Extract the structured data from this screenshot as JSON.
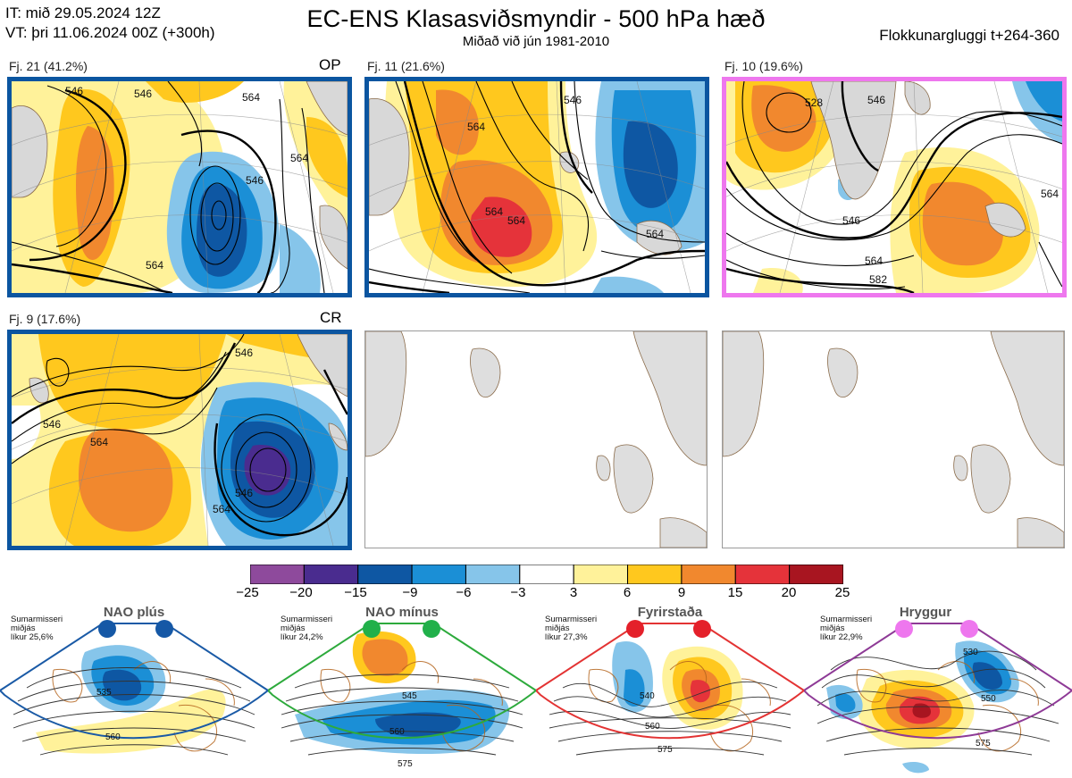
{
  "header": {
    "it_line": "IT: mið 29.05.2024 12Z",
    "vt_line": "VT: þri 11.06.2024 00Z  (+300h)",
    "title": "EC-ENS Klasasviðsmyndir - 500 hPa hæð",
    "subtitle": "Miðað við jún 1981-2010",
    "window": "Flokkunargluggi t+264-360"
  },
  "panels": [
    {
      "label": "Fj. 21 (41.2%)",
      "tag": "OP",
      "frame": "blue",
      "contours": [
        "546",
        "564",
        "564",
        "564",
        "546",
        "546"
      ]
    },
    {
      "label": "Fj. 11 (21.6%)",
      "tag": "",
      "frame": "blue",
      "contours": [
        "564",
        "546",
        "564",
        "564",
        "564"
      ]
    },
    {
      "label": "Fj. 10 (19.6%)",
      "tag": "",
      "frame": "pink",
      "contours": [
        "528",
        "546",
        "564",
        "546",
        "582",
        "564"
      ]
    },
    {
      "label": "Fj. 9 (17.6%)",
      "tag": "CR",
      "frame": "blue",
      "contours": [
        "546",
        "546",
        "564",
        "546",
        "564"
      ]
    }
  ],
  "colorbar": {
    "ticks": [
      "−25",
      "−20",
      "−15",
      "−9",
      "−6",
      "−3",
      "3",
      "6",
      "9",
      "15",
      "20",
      "25"
    ],
    "colors": [
      "#8e4a9c",
      "#4a2c8f",
      "#0e57a3",
      "#1b8fd6",
      "#86c5ea",
      "#ffffff",
      "#fff29a",
      "#ffc81e",
      "#f1882e",
      "#e5333a",
      "#a81520"
    ]
  },
  "regimes": [
    {
      "title": "NAO plús",
      "note": [
        "Sumarmisseri",
        "miðjás",
        "líkur 25,6%"
      ],
      "frame": "#1a5aa6",
      "dot": "#1558a6",
      "labels": [
        "535",
        "560"
      ]
    },
    {
      "title": "NAO mínus",
      "note": [
        "Sumarmisseri",
        "miðjás",
        "líkur 24,2%"
      ],
      "frame": "#2daa3c",
      "dot": "#21b04a",
      "labels": [
        "545",
        "560",
        "575"
      ]
    },
    {
      "title": "Fyrirstaða",
      "note": [
        "Sumarmisseri",
        "miðjás",
        "líkur 27,3%"
      ],
      "frame": "#e33333",
      "dot": "#e4202a",
      "labels": [
        "540",
        "560",
        "575"
      ]
    },
    {
      "title": "Hryggur",
      "note": [
        "Sumarmisseri",
        "miðjás",
        "líkur 22,9%"
      ],
      "frame": "#8e3a96",
      "dot": "#ee77ee",
      "labels": [
        "530",
        "550",
        "575"
      ]
    }
  ]
}
